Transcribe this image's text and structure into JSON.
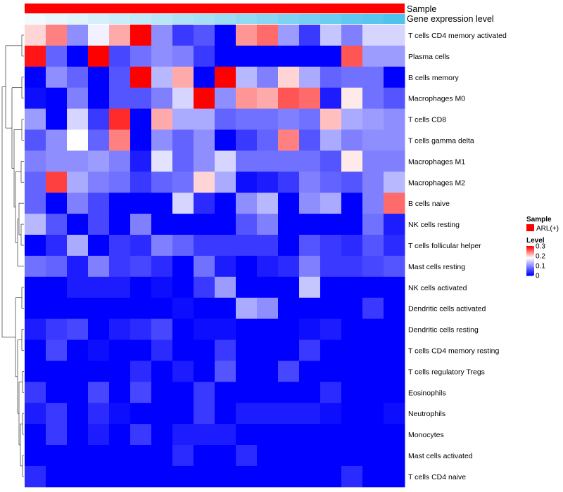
{
  "chart_data": {
    "type": "heatmap",
    "title": "",
    "column_annotations": [
      {
        "name": "Sample",
        "label": "Sample",
        "color": "#FF0000"
      },
      {
        "name": "Gene expression level",
        "label": "Gene expression level",
        "gradient": [
          "#F2FAFD",
          "#4EC3EE"
        ]
      }
    ],
    "rows": [
      "T cells CD4 memory activated",
      "Plasma cells",
      "B cells memory",
      "Macrophages M0",
      "T cells CD8",
      "T cells gamma delta",
      "Macrophages M1",
      "Macrophages M2",
      "B cells naive",
      "NK cells resting",
      "T cells follicular helper",
      "Mast cells resting",
      "NK cells activated",
      "Dendritic cells activated",
      "Dendritic cells resting",
      "T cells CD4 memory resting",
      "T cells regulatory  Tregs",
      "Eosinophils",
      "Neutrophils",
      "Monocytes",
      "Mast cells activated",
      "T cells CD4 naive"
    ],
    "n_columns": 18,
    "values": [
      [
        0.2,
        0.24,
        0.1,
        0.17,
        0.22,
        0.3,
        0.1,
        0.04,
        0.06,
        0.0,
        0.23,
        0.25,
        0.11,
        0.04,
        0.14,
        0.09,
        0.15,
        0.15
      ],
      [
        0.29,
        0.07,
        0.0,
        0.3,
        0.05,
        0.08,
        0.1,
        0.09,
        0.04,
        0.0,
        0.0,
        0.0,
        0.0,
        0.0,
        0.0,
        0.26,
        0.11,
        0.11
      ],
      [
        0.0,
        0.1,
        0.07,
        0.0,
        0.06,
        0.3,
        0.13,
        0.22,
        0.0,
        0.3,
        0.13,
        0.09,
        0.2,
        0.12,
        0.07,
        0.08,
        0.08,
        0.0
      ],
      [
        0.01,
        0.0,
        0.09,
        0.0,
        0.06,
        0.06,
        0.09,
        0.15,
        0.3,
        0.1,
        0.23,
        0.22,
        0.26,
        0.25,
        0.02,
        0.19,
        0.08,
        0.06
      ],
      [
        0.11,
        0.0,
        0.15,
        0.04,
        0.28,
        0.0,
        0.22,
        0.12,
        0.12,
        0.07,
        0.08,
        0.08,
        0.09,
        0.08,
        0.21,
        0.12,
        0.11,
        0.1
      ],
      [
        0.06,
        0.1,
        0.18,
        0.07,
        0.24,
        0.0,
        0.1,
        0.07,
        0.1,
        0.0,
        0.04,
        0.07,
        0.24,
        0.06,
        0.12,
        0.09,
        0.1,
        0.1
      ],
      [
        0.09,
        0.1,
        0.1,
        0.11,
        0.09,
        0.02,
        0.16,
        0.07,
        0.1,
        0.15,
        0.08,
        0.08,
        0.08,
        0.08,
        0.06,
        0.19,
        0.09,
        0.09
      ],
      [
        0.07,
        0.27,
        0.12,
        0.09,
        0.08,
        0.04,
        0.07,
        0.08,
        0.2,
        0.12,
        0.01,
        0.02,
        0.04,
        0.09,
        0.07,
        0.06,
        0.09,
        0.13
      ],
      [
        0.07,
        0.0,
        0.09,
        0.05,
        0.0,
        0.0,
        0.0,
        0.15,
        0.03,
        0.0,
        0.1,
        0.13,
        0.0,
        0.1,
        0.12,
        0.0,
        0.09,
        0.25
      ],
      [
        0.13,
        0.06,
        0.0,
        0.05,
        0.0,
        0.09,
        0.0,
        0.0,
        0.0,
        0.0,
        0.06,
        0.09,
        0.0,
        0.0,
        0.0,
        0.0,
        0.08,
        0.02
      ],
      [
        0.0,
        0.03,
        0.12,
        0.0,
        0.04,
        0.03,
        0.09,
        0.07,
        0.04,
        0.04,
        0.04,
        0.04,
        0.0,
        0.06,
        0.04,
        0.03,
        0.06,
        0.03
      ],
      [
        0.08,
        0.07,
        0.02,
        0.09,
        0.04,
        0.05,
        0.03,
        0.0,
        0.08,
        0.02,
        0.0,
        0.02,
        0.03,
        0.09,
        0.04,
        0.04,
        0.05,
        0.06
      ],
      [
        0.0,
        0.0,
        0.02,
        0.02,
        0.02,
        0.0,
        0.01,
        0.0,
        0.04,
        0.11,
        0.0,
        0.0,
        0.0,
        0.14,
        0.0,
        0.0,
        0.0,
        0.0
      ],
      [
        0.0,
        0.0,
        0.0,
        0.0,
        0.0,
        0.0,
        0.0,
        0.01,
        0.0,
        0.0,
        0.12,
        0.1,
        0.0,
        0.0,
        0.0,
        0.0,
        0.04,
        0.0
      ],
      [
        0.02,
        0.04,
        0.05,
        0.0,
        0.02,
        0.03,
        0.05,
        0.0,
        0.01,
        0.01,
        0.0,
        0.0,
        0.0,
        0.01,
        0.02,
        0.0,
        0.0,
        0.0
      ],
      [
        0.0,
        0.05,
        0.0,
        0.01,
        0.0,
        0.0,
        0.03,
        0.0,
        0.0,
        0.04,
        0.0,
        0.0,
        0.0,
        0.04,
        0.0,
        0.0,
        0.0,
        0.0
      ],
      [
        0.0,
        0.0,
        0.0,
        0.0,
        0.0,
        0.03,
        0.0,
        0.02,
        0.0,
        0.06,
        0.0,
        0.0,
        0.05,
        0.0,
        0.0,
        0.0,
        0.0,
        0.0
      ],
      [
        0.04,
        0.0,
        0.0,
        0.05,
        0.0,
        0.05,
        0.0,
        0.0,
        0.04,
        0.0,
        0.0,
        0.0,
        0.0,
        0.0,
        0.03,
        0.0,
        0.0,
        0.0
      ],
      [
        0.02,
        0.04,
        0.0,
        0.03,
        0.01,
        0.0,
        0.0,
        0.0,
        0.04,
        0.0,
        0.02,
        0.02,
        0.02,
        0.02,
        0.01,
        0.0,
        0.0,
        0.01
      ],
      [
        0.0,
        0.04,
        0.0,
        0.02,
        0.0,
        0.04,
        0.0,
        0.02,
        0.02,
        0.02,
        0.0,
        0.0,
        0.0,
        0.0,
        0.0,
        0.0,
        0.0,
        0.0
      ],
      [
        0.0,
        0.0,
        0.0,
        0.0,
        0.0,
        0.0,
        0.0,
        0.03,
        0.0,
        0.0,
        0.03,
        0.0,
        0.0,
        0.0,
        0.0,
        0.0,
        0.0,
        0.0
      ],
      [
        0.03,
        0.0,
        0.0,
        0.0,
        0.0,
        0.0,
        0.0,
        0.0,
        0.0,
        0.0,
        0.0,
        0.0,
        0.0,
        0.0,
        0.0,
        0.03,
        0.0,
        0.0
      ]
    ],
    "color_scale": {
      "low": "#0000FF",
      "mid": "#FFFFFF",
      "high": "#FF0000",
      "min": 0,
      "max": 0.3,
      "mid_value": 0.18
    },
    "legend": {
      "sample_title": "Sample",
      "sample_entry": "ARL(+)",
      "sample_color": "#FF0000",
      "level_title": "Level",
      "ticks": [
        {
          "value": 0.3,
          "label": "0.3"
        },
        {
          "value": 0.2,
          "label": "0.2"
        },
        {
          "value": 0.1,
          "label": "0.1"
        },
        {
          "value": 0.0,
          "label": "0"
        }
      ],
      "position": "right"
    },
    "dendrogram": {
      "side": "left",
      "leaf_order": "rows"
    }
  }
}
